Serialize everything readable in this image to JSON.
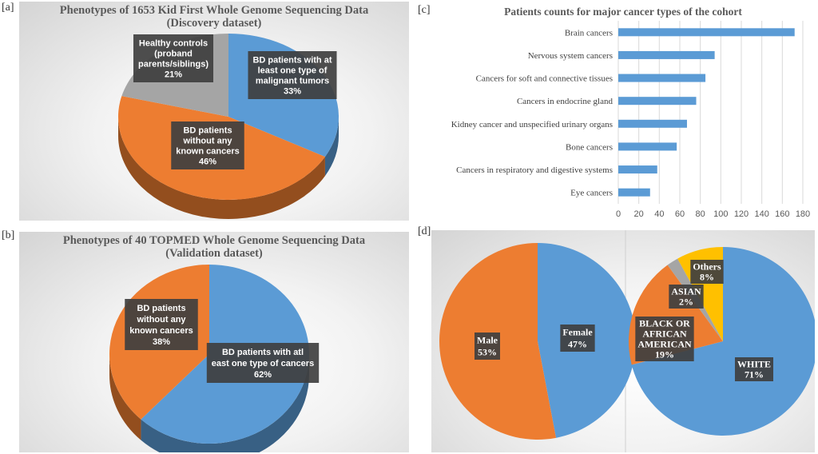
{
  "panel_labels": {
    "a": "[a]",
    "b": "[b]",
    "c": "[c]",
    "d": "[d]"
  },
  "chart_data": [
    {
      "id": "a",
      "type": "pie",
      "title": "Phenotypes of 1653 Kid First Whole Genome Sequencing Data",
      "subtitle": "(Discovery dataset)",
      "slices": [
        {
          "label_lines": [
            "BD patients with at",
            "least one type of",
            "malignant tumors"
          ],
          "value": 33,
          "pct": "33%",
          "color": "#5b9bd5"
        },
        {
          "label_lines": [
            "BD patients",
            "without any",
            "known cancers"
          ],
          "value": 46,
          "pct": "46%",
          "color": "#ed7d31"
        },
        {
          "label_lines": [
            "Healthy controls",
            "(proband",
            "parents/siblings)"
          ],
          "value": 21,
          "pct": "21%",
          "color": "#a5a5a5"
        }
      ]
    },
    {
      "id": "b",
      "type": "pie",
      "title": "Phenotypes of 40 TOPMED Whole Genome Sequencing Data",
      "subtitle": "(Validation dataset)",
      "slices": [
        {
          "label_lines": [
            "BD patients with atl",
            "east one type of cancers"
          ],
          "value": 62,
          "pct": "62%",
          "color": "#5b9bd5"
        },
        {
          "label_lines": [
            "BD patients",
            "without any",
            "known cancers"
          ],
          "value": 38,
          "pct": "38%",
          "color": "#ed7d31"
        }
      ]
    },
    {
      "id": "c",
      "type": "bar",
      "orientation": "horizontal",
      "title": "Patients counts for major cancer types of the cohort",
      "categories": [
        "Brain cancers",
        "Nervous system cancers",
        "Cancers for soft and connective tissues",
        "Cancers in endocrine gland",
        "Kidney cancer and unspecified urinary organs",
        "Bone cancers",
        "Cancers in  respiratory and digestive systems",
        "Eye cancers"
      ],
      "values": [
        172,
        94,
        85,
        76,
        67,
        57,
        38,
        31
      ],
      "xlim": [
        0,
        180
      ],
      "xticks": [
        "0",
        "20",
        "40",
        "60",
        "80",
        "100",
        "120",
        "140",
        "160",
        "180"
      ],
      "grid": true,
      "color": "#5b9bd5"
    },
    {
      "id": "d1",
      "type": "pie",
      "slices": [
        {
          "label": "Female",
          "value": 47,
          "pct": "47%",
          "color": "#5b9bd5"
        },
        {
          "label": "Male",
          "value": 53,
          "pct": "53%",
          "color": "#ed7d31"
        }
      ]
    },
    {
      "id": "d2",
      "type": "pie",
      "slices": [
        {
          "label_lines": [
            "WHITE"
          ],
          "value": 71,
          "pct": "71%",
          "color": "#5b9bd5"
        },
        {
          "label_lines": [
            "BLACK OR",
            "AFRICAN",
            "AMERICAN"
          ],
          "value": 19,
          "pct": "19%",
          "color": "#ed7d31"
        },
        {
          "label_lines": [
            "ASIAN"
          ],
          "value": 2,
          "pct": "2%",
          "color": "#a5a5a5"
        },
        {
          "label_lines": [
            "Others"
          ],
          "value": 8,
          "pct": "8%",
          "color": "#ffc000"
        }
      ]
    }
  ]
}
